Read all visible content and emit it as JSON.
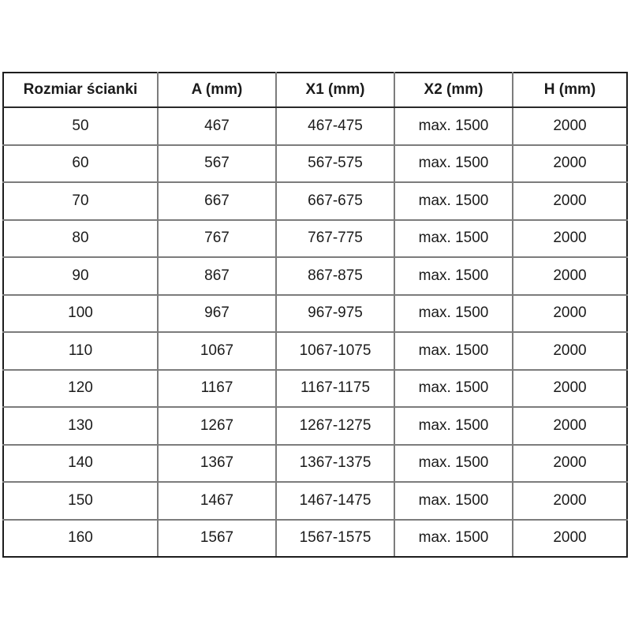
{
  "table": {
    "columns": [
      {
        "id": "rozmiar-scianki",
        "label": "Rozmiar ścianki"
      },
      {
        "id": "a",
        "label": "A (mm)"
      },
      {
        "id": "x1",
        "label": "X1 (mm)"
      },
      {
        "id": "x2",
        "label": "X2 (mm)"
      },
      {
        "id": "h",
        "label": "H (mm)"
      }
    ],
    "rows": [
      [
        "50",
        "467",
        "467-475",
        "max. 1500",
        "2000"
      ],
      [
        "60",
        "567",
        "567-575",
        "max. 1500",
        "2000"
      ],
      [
        "70",
        "667",
        "667-675",
        "max. 1500",
        "2000"
      ],
      [
        "80",
        "767",
        "767-775",
        "max. 1500",
        "2000"
      ],
      [
        "90",
        "867",
        "867-875",
        "max. 1500",
        "2000"
      ],
      [
        "100",
        "967",
        "967-975",
        "max. 1500",
        "2000"
      ],
      [
        "110",
        "1067",
        "1067-1075",
        "max. 1500",
        "2000"
      ],
      [
        "120",
        "1167",
        "1167-1175",
        "max. 1500",
        "2000"
      ],
      [
        "130",
        "1267",
        "1267-1275",
        "max. 1500",
        "2000"
      ],
      [
        "140",
        "1367",
        "1367-1375",
        "max. 1500",
        "2000"
      ],
      [
        "150",
        "1467",
        "1467-1475",
        "max. 1500",
        "2000"
      ],
      [
        "160",
        "1567",
        "1567-1575",
        "max. 1500",
        "2000"
      ]
    ],
    "colors": {
      "outer_border": "#1d1d1d",
      "header_separator": "#2a2a2a",
      "grid_line": "#7c7c7c",
      "text": "#1b1b1b",
      "background": "#ffffff"
    }
  }
}
